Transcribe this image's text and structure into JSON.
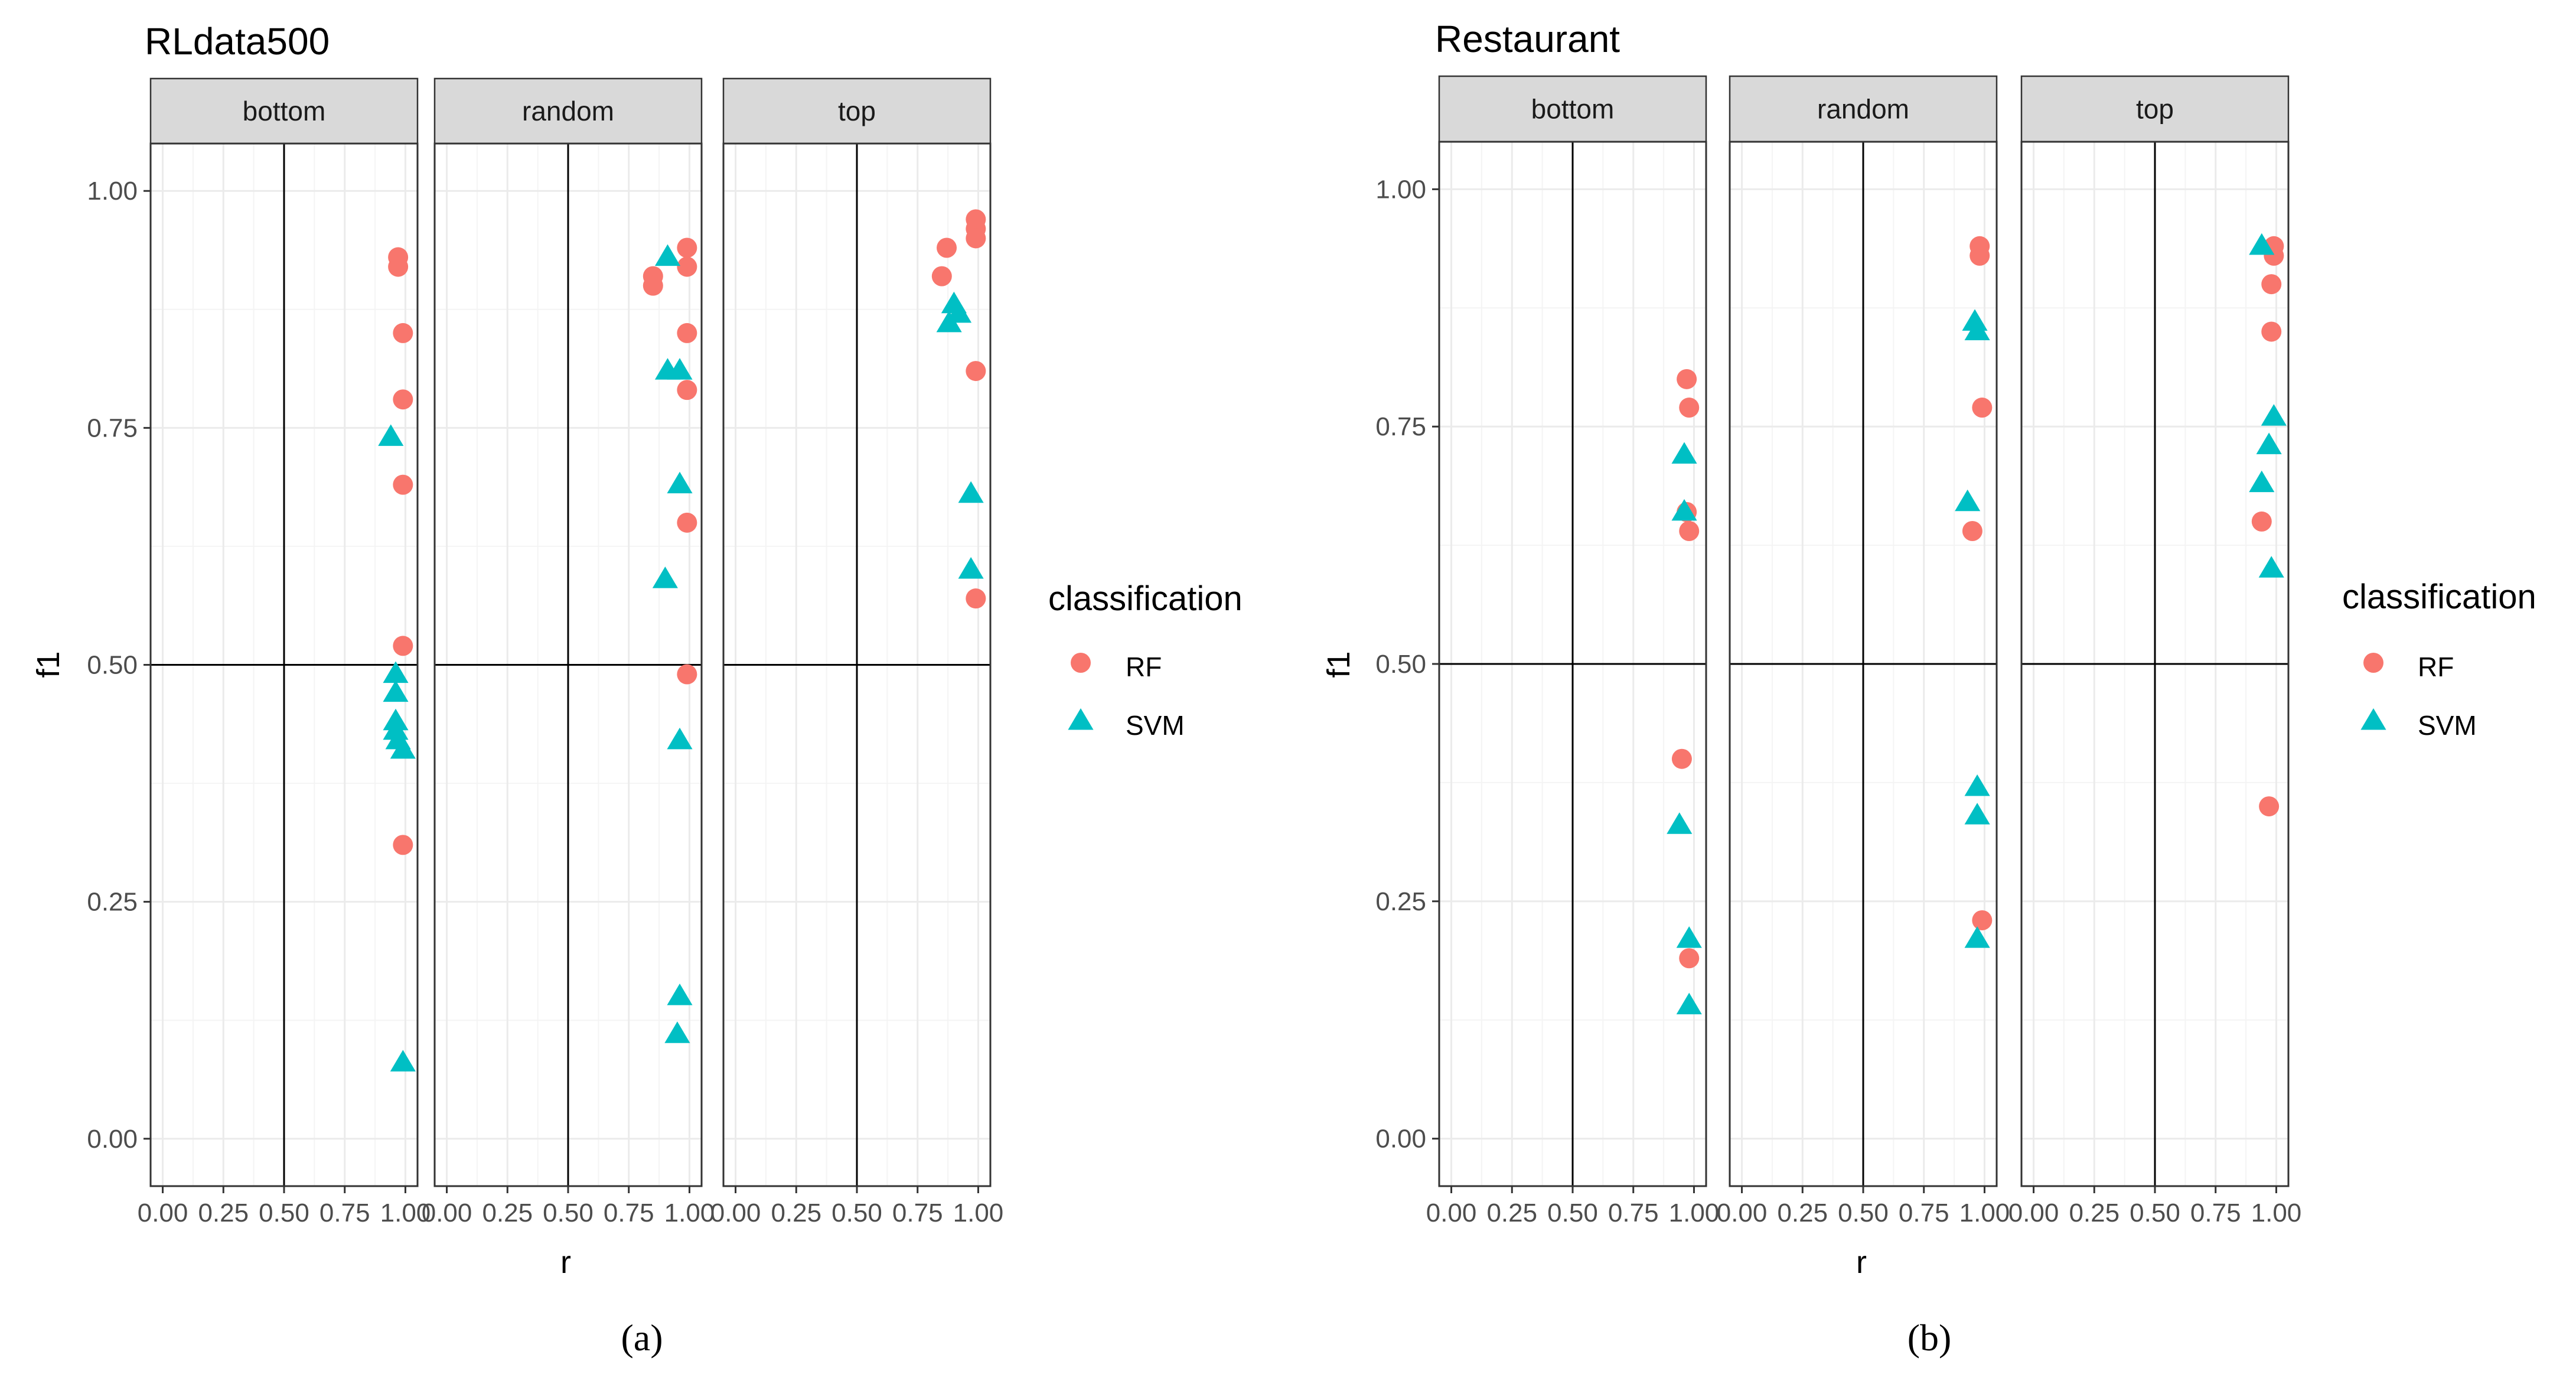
{
  "colors": {
    "rf": "#F8766D",
    "svm": "#00BFC4",
    "strip_bg": "#d9d9d9",
    "grid_major": "#ebebeb",
    "grid_minor": "#f4f4f4",
    "ref_line": "#000000"
  },
  "chart_data": [
    {
      "type": "scatter",
      "title": "RLdata500",
      "xlabel": "r",
      "ylabel": "f1",
      "caption": "(a)",
      "facets": [
        "bottom",
        "random",
        "top"
      ],
      "xlim": [
        -0.05,
        1.05
      ],
      "ylim": [
        -0.05,
        1.05
      ],
      "x_ticks": [
        0.0,
        0.25,
        0.5,
        0.75,
        1.0
      ],
      "x_tick_labels": [
        "0.00",
        "0.25",
        "0.50",
        "0.75",
        "1.00"
      ],
      "y_ticks": [
        0.0,
        0.25,
        0.5,
        0.75,
        1.0
      ],
      "y_tick_labels": [
        "0.00",
        "0.25",
        "0.50",
        "0.75",
        "1.00"
      ],
      "ref_x": 0.5,
      "ref_y": 0.5,
      "legend": {
        "title": "classification",
        "entries": [
          "RF",
          "SVM"
        ]
      },
      "series": [
        {
          "name": "RF",
          "shape": "circle",
          "points": {
            "bottom": [
              [
                0.97,
                0.93
              ],
              [
                0.97,
                0.92
              ],
              [
                0.99,
                0.85
              ],
              [
                0.99,
                0.78
              ],
              [
                0.99,
                0.69
              ],
              [
                0.99,
                0.52
              ],
              [
                0.99,
                0.31
              ]
            ],
            "random": [
              [
                0.85,
                0.91
              ],
              [
                0.85,
                0.9
              ],
              [
                0.99,
                0.94
              ],
              [
                0.99,
                0.92
              ],
              [
                0.99,
                0.85
              ],
              [
                0.99,
                0.79
              ],
              [
                0.99,
                0.65
              ],
              [
                0.99,
                0.49
              ]
            ],
            "top": [
              [
                0.85,
                0.91
              ],
              [
                0.87,
                0.94
              ],
              [
                0.99,
                0.97
              ],
              [
                0.99,
                0.96
              ],
              [
                0.99,
                0.95
              ],
              [
                0.99,
                0.81
              ],
              [
                0.99,
                0.57
              ]
            ]
          }
        },
        {
          "name": "SVM",
          "shape": "triangle",
          "points": {
            "bottom": [
              [
                0.94,
                0.74
              ],
              [
                0.96,
                0.49
              ],
              [
                0.96,
                0.47
              ],
              [
                0.96,
                0.44
              ],
              [
                0.96,
                0.43
              ],
              [
                0.97,
                0.42
              ],
              [
                0.99,
                0.41
              ],
              [
                0.99,
                0.08
              ]
            ],
            "random": [
              [
                0.91,
                0.93
              ],
              [
                0.91,
                0.81
              ],
              [
                0.96,
                0.81
              ],
              [
                0.96,
                0.69
              ],
              [
                0.9,
                0.59
              ],
              [
                0.96,
                0.42
              ],
              [
                0.96,
                0.15
              ],
              [
                0.95,
                0.11
              ]
            ],
            "top": [
              [
                0.9,
                0.88
              ],
              [
                0.92,
                0.87
              ],
              [
                0.88,
                0.86
              ],
              [
                0.97,
                0.68
              ],
              [
                0.97,
                0.6
              ]
            ]
          }
        }
      ]
    },
    {
      "type": "scatter",
      "title": "Restaurant",
      "xlabel": "r",
      "ylabel": "f1",
      "caption": "(b)",
      "facets": [
        "bottom",
        "random",
        "top"
      ],
      "xlim": [
        -0.05,
        1.05
      ],
      "ylim": [
        -0.05,
        1.05
      ],
      "x_ticks": [
        0.0,
        0.25,
        0.5,
        0.75,
        1.0
      ],
      "x_tick_labels": [
        "0.00",
        "0.25",
        "0.50",
        "0.75",
        "1.00"
      ],
      "y_ticks": [
        0.0,
        0.25,
        0.5,
        0.75,
        1.0
      ],
      "y_tick_labels": [
        "0.00",
        "0.25",
        "0.50",
        "0.75",
        "1.00"
      ],
      "ref_x": 0.5,
      "ref_y": 0.5,
      "legend": {
        "title": "classification",
        "entries": [
          "RF",
          "SVM"
        ]
      },
      "series": [
        {
          "name": "RF",
          "shape": "circle",
          "points": {
            "bottom": [
              [
                0.97,
                0.8
              ],
              [
                0.98,
                0.77
              ],
              [
                0.97,
                0.66
              ],
              [
                0.98,
                0.64
              ],
              [
                0.95,
                0.4
              ],
              [
                0.98,
                0.19
              ]
            ],
            "random": [
              [
                0.98,
                0.94
              ],
              [
                0.98,
                0.93
              ],
              [
                0.99,
                0.77
              ],
              [
                0.95,
                0.64
              ],
              [
                0.99,
                0.23
              ]
            ],
            "top": [
              [
                0.99,
                0.94
              ],
              [
                0.99,
                0.93
              ],
              [
                0.98,
                0.9
              ],
              [
                0.98,
                0.85
              ],
              [
                0.94,
                0.65
              ],
              [
                0.97,
                0.35
              ]
            ]
          }
        },
        {
          "name": "SVM",
          "shape": "triangle",
          "points": {
            "bottom": [
              [
                0.96,
                0.72
              ],
              [
                0.96,
                0.66
              ],
              [
                0.94,
                0.33
              ],
              [
                0.98,
                0.21
              ],
              [
                0.98,
                0.14
              ]
            ],
            "random": [
              [
                0.96,
                0.86
              ],
              [
                0.97,
                0.85
              ],
              [
                0.93,
                0.67
              ],
              [
                0.97,
                0.37
              ],
              [
                0.97,
                0.34
              ],
              [
                0.97,
                0.21
              ]
            ],
            "top": [
              [
                0.94,
                0.94
              ],
              [
                0.99,
                0.76
              ],
              [
                0.97,
                0.73
              ],
              [
                0.94,
                0.69
              ],
              [
                0.98,
                0.6
              ]
            ]
          }
        }
      ]
    }
  ]
}
